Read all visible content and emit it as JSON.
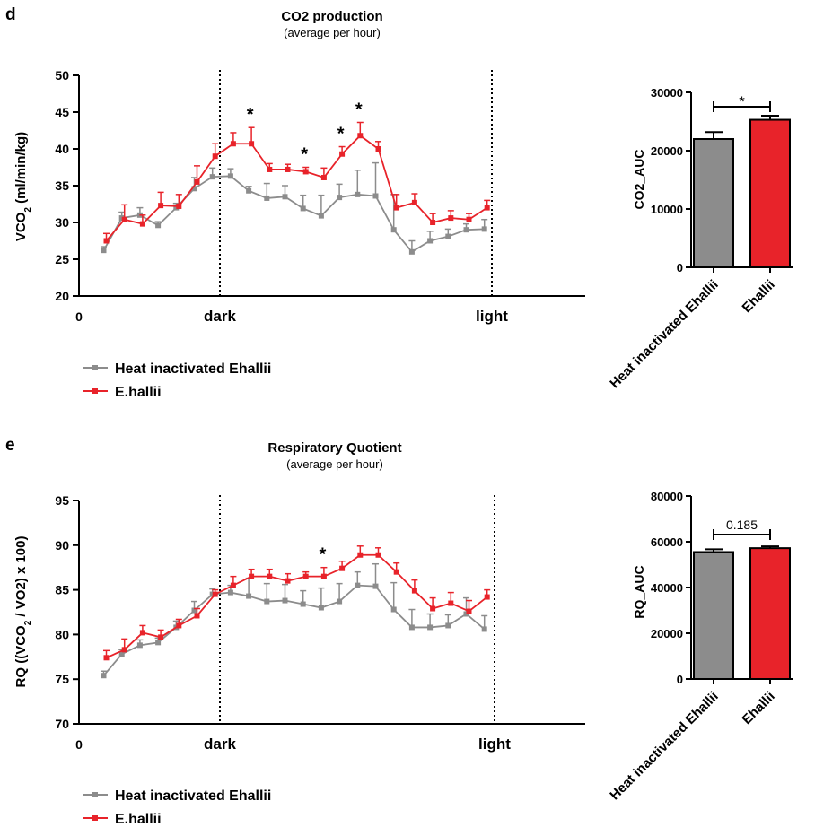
{
  "chart_data": [
    {
      "panel": "d",
      "type": "line",
      "title": "CO2 production",
      "subtitle": "(average per hour)",
      "ylabel": "VCO2 (ml/min/kg)",
      "ylim": [
        20,
        50
      ],
      "yticks": [
        20,
        25,
        30,
        35,
        40,
        45,
        50
      ],
      "xticks": [
        "0",
        "dark",
        "light"
      ],
      "legend": [
        "Heat inactivated Ehallii",
        "E.hallii"
      ],
      "series": [
        {
          "name": "Heat inactivated Ehallii",
          "color": "#8c8c8c",
          "values": [
            26.2,
            30.6,
            31,
            29.6,
            32,
            34.6,
            36.2,
            36.3,
            34.3,
            33.3,
            33.5,
            31.9,
            30.9,
            33.4,
            33.8,
            33.6,
            29,
            26,
            27.5,
            28.1,
            29,
            29.1
          ],
          "errors": [
            0.5,
            0.8,
            1,
            0.5,
            0.6,
            1.5,
            1.2,
            1,
            0.6,
            2,
            1.5,
            1.8,
            2.8,
            1.8,
            3.3,
            4.5,
            4.8,
            1.5,
            1.3,
            1,
            0.8,
            1.3
          ]
        },
        {
          "name": "E.hallii",
          "color": "#e8232a",
          "values": [
            27.5,
            30.4,
            29.8,
            32.3,
            32.2,
            35.5,
            39,
            40.7,
            40.7,
            37.2,
            37.2,
            36.9,
            36.1,
            39.3,
            41.8,
            40,
            32,
            32.7,
            30,
            30.6,
            30.4,
            32
          ],
          "errors": [
            1,
            2,
            1.2,
            1.8,
            1.6,
            2.2,
            1.7,
            1.5,
            2.2,
            0.8,
            0.7,
            0.6,
            1.3,
            1,
            1.8,
            1,
            1.8,
            1.2,
            1.2,
            1,
            0.8,
            1
          ]
        }
      ],
      "significance_marks": [
        {
          "index": 8,
          "text": "*"
        },
        {
          "index": 11,
          "text": "*"
        },
        {
          "index": 13,
          "text": "*"
        },
        {
          "index": 14,
          "text": "*"
        }
      ]
    },
    {
      "panel": "d",
      "type": "bar",
      "ylabel": "CO2_AUC",
      "ylim": [
        0,
        30000
      ],
      "yticks": [
        0,
        10000,
        20000,
        30000
      ],
      "categories": [
        "Heat inactivated Ehallii",
        "Ehallii"
      ],
      "values": [
        22000,
        25300
      ],
      "errors": [
        1200,
        700
      ],
      "colors": [
        "#8c8c8c",
        "#e8232a"
      ],
      "significance": "*"
    },
    {
      "panel": "e",
      "type": "line",
      "title": "Respiratory Quotient",
      "subtitle": "(average per hour)",
      "ylabel": "RQ ((VCO2 / VO2) x 100)",
      "ylim": [
        70,
        95
      ],
      "yticks": [
        70,
        75,
        80,
        85,
        90,
        95
      ],
      "xticks": [
        "0",
        "dark",
        "light"
      ],
      "legend": [
        "Heat inactivated Ehallii",
        "E.hallii"
      ],
      "series": [
        {
          "name": "Heat inactivated Ehallii",
          "color": "#8c8c8c",
          "values": [
            75.4,
            77.8,
            78.8,
            79.1,
            80.8,
            82.7,
            84.5,
            84.7,
            84.3,
            83.7,
            83.8,
            83.4,
            83,
            83.7,
            85.5,
            85.4,
            82.8,
            80.8,
            80.8,
            81,
            82.3,
            80.6
          ],
          "errors": [
            0.5,
            0.5,
            0.6,
            0.5,
            0.7,
            1,
            0.6,
            0.8,
            2,
            2,
            1.8,
            1.5,
            2.2,
            2,
            1.5,
            2.5,
            3,
            2,
            1.5,
            1.2,
            1.8,
            1.5
          ]
        },
        {
          "name": "E.hallii",
          "color": "#e8232a",
          "values": [
            77.4,
            78.3,
            80.2,
            79.7,
            81,
            82.1,
            84.5,
            85.5,
            86.5,
            86.5,
            86,
            86.5,
            86.5,
            87.4,
            88.9,
            88.9,
            87,
            84.9,
            82.9,
            83.5,
            82.6,
            84.2
          ],
          "errors": [
            0.8,
            1.2,
            0.8,
            0.8,
            0.7,
            0.8,
            0.5,
            1,
            0.8,
            0.8,
            0.8,
            0.5,
            1,
            0.8,
            1,
            0.8,
            1,
            1.2,
            1.2,
            1.2,
            1.2,
            0.8
          ]
        }
      ],
      "significance_marks": [
        {
          "index": 12,
          "text": "*"
        }
      ]
    },
    {
      "panel": "e",
      "type": "bar",
      "ylabel": "RQ_AUC",
      "ylim": [
        0,
        80000
      ],
      "yticks": [
        0,
        20000,
        40000,
        60000,
        80000
      ],
      "categories": [
        "Heat inactivated Ehallii",
        "Ehallii"
      ],
      "values": [
        55500,
        57200
      ],
      "errors": [
        1200,
        800
      ],
      "colors": [
        "#8c8c8c",
        "#e8232a"
      ],
      "significance": "0.185"
    }
  ]
}
